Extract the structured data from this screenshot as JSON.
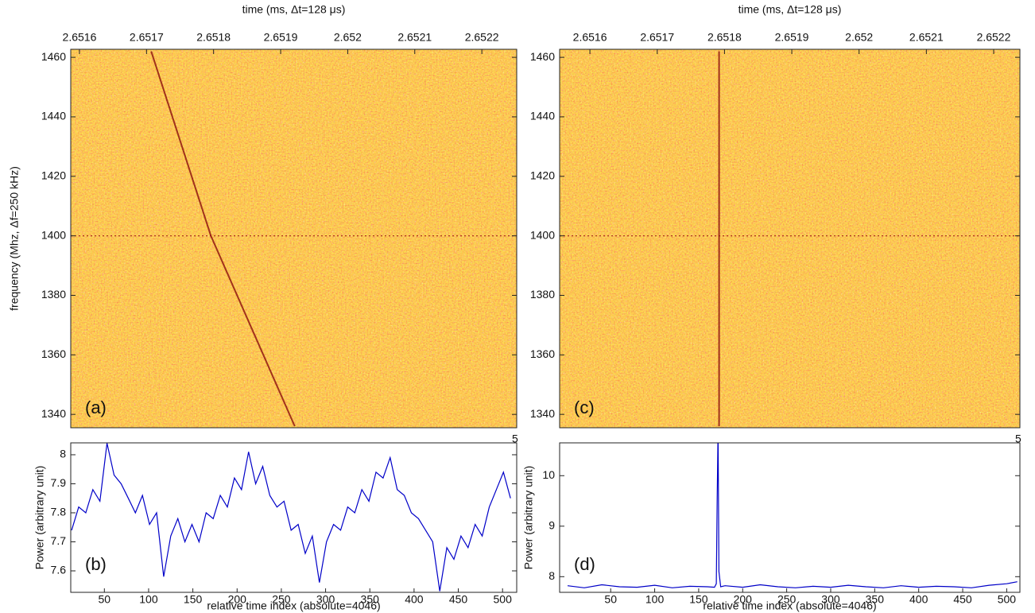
{
  "chart_data": [
    {
      "type": "heatmap",
      "x_label": "time (ms, Δt=128 μs)",
      "y_label": "frequency (Mhz, Δf=250 kHz)",
      "panel_label": "(a)",
      "xlim": [
        2.651587,
        2.652252
      ],
      "xticks": [
        2.6516,
        2.6517,
        2.6518,
        2.6519,
        2.652,
        2.6521,
        2.6522
      ],
      "ylim": [
        1335.5,
        1462.7
      ],
      "yticks": [
        1340,
        1360,
        1380,
        1400,
        1420,
        1440,
        1460
      ],
      "pulse": {
        "x": [
          2.651707,
          2.651796,
          2.651921
        ],
        "y": [
          1462,
          1400,
          1336
        ]
      },
      "rfi_y": 1400
    },
    {
      "type": "line",
      "x_label": "relative time index (absolute=4046)",
      "y_label": "Power (arbitrary unit)",
      "panel_label": "(b)",
      "annotation": "5",
      "color": "#0000c8",
      "xlim": [
        12,
        516
      ],
      "xticks": [
        50,
        100,
        150,
        200,
        250,
        300,
        350,
        400,
        450,
        500
      ],
      "ylim": [
        7.526,
        8.041
      ],
      "yticks": [
        7.6,
        7.7,
        7.8,
        7.9,
        8
      ],
      "x": [
        13,
        21,
        29,
        37,
        45,
        53,
        61,
        69,
        77,
        85,
        93,
        101,
        109,
        117,
        125,
        133,
        141,
        149,
        157,
        165,
        173,
        181,
        189,
        197,
        205,
        213,
        221,
        229,
        237,
        245,
        253,
        261,
        269,
        277,
        285,
        293,
        301,
        309,
        317,
        325,
        333,
        341,
        349,
        357,
        365,
        373,
        381,
        389,
        397,
        405,
        413,
        421,
        429,
        437,
        445,
        453,
        461,
        469,
        477,
        485,
        493,
        501,
        509
      ],
      "values": [
        7.74,
        7.82,
        7.8,
        7.88,
        7.84,
        8.04,
        7.93,
        7.9,
        7.85,
        7.8,
        7.86,
        7.76,
        7.8,
        7.58,
        7.72,
        7.78,
        7.7,
        7.76,
        7.7,
        7.8,
        7.78,
        7.86,
        7.82,
        7.92,
        7.88,
        8.01,
        7.9,
        7.96,
        7.86,
        7.82,
        7.84,
        7.74,
        7.76,
        7.66,
        7.72,
        7.56,
        7.7,
        7.76,
        7.74,
        7.82,
        7.8,
        7.88,
        7.84,
        7.94,
        7.92,
        7.99,
        7.88,
        7.86,
        7.8,
        7.78,
        7.74,
        7.7,
        7.53,
        7.68,
        7.64,
        7.72,
        7.68,
        7.76,
        7.72,
        7.82,
        7.88,
        7.94,
        7.85
      ]
    },
    {
      "type": "heatmap",
      "x_label": "time (ms, Δt=128 μs)",
      "panel_label": "(c)",
      "xlim": [
        2.651555,
        2.652239
      ],
      "xticks": [
        2.6516,
        2.6517,
        2.6518,
        2.6519,
        2.652,
        2.6521,
        2.6522
      ],
      "ylim": [
        1335.5,
        1462.7
      ],
      "yticks": [
        1340,
        1360,
        1380,
        1400,
        1420,
        1440,
        1460
      ],
      "pulse": {
        "x": [
          2.651792,
          2.651792
        ],
        "y": [
          1462,
          1336
        ]
      },
      "rfi_y": 1400
    },
    {
      "type": "line",
      "x_label": "relative time index (absolute=4046)",
      "y_label": "Power (arbitrary unit)",
      "panel_label": "(d)",
      "annotation": "5",
      "color": "#0000c8",
      "xlim": [
        -8,
        515
      ],
      "xticks": [
        50,
        100,
        150,
        200,
        250,
        300,
        350,
        400,
        450,
        500
      ],
      "ylim": [
        7.69,
        10.65
      ],
      "yticks": [
        8,
        9,
        10
      ],
      "x": [
        1,
        20,
        40,
        60,
        80,
        100,
        120,
        140,
        160,
        168,
        170,
        171,
        172,
        173,
        175,
        180,
        200,
        220,
        240,
        260,
        280,
        300,
        320,
        340,
        360,
        380,
        400,
        420,
        440,
        460,
        480,
        500,
        512
      ],
      "values": [
        7.82,
        7.78,
        7.84,
        7.8,
        7.79,
        7.83,
        7.78,
        7.81,
        7.8,
        7.79,
        7.86,
        9.55,
        10.9,
        8.1,
        7.8,
        7.82,
        7.79,
        7.84,
        7.8,
        7.78,
        7.81,
        7.79,
        7.83,
        7.8,
        7.78,
        7.82,
        7.79,
        7.81,
        7.8,
        7.78,
        7.83,
        7.86,
        7.9
      ]
    }
  ]
}
